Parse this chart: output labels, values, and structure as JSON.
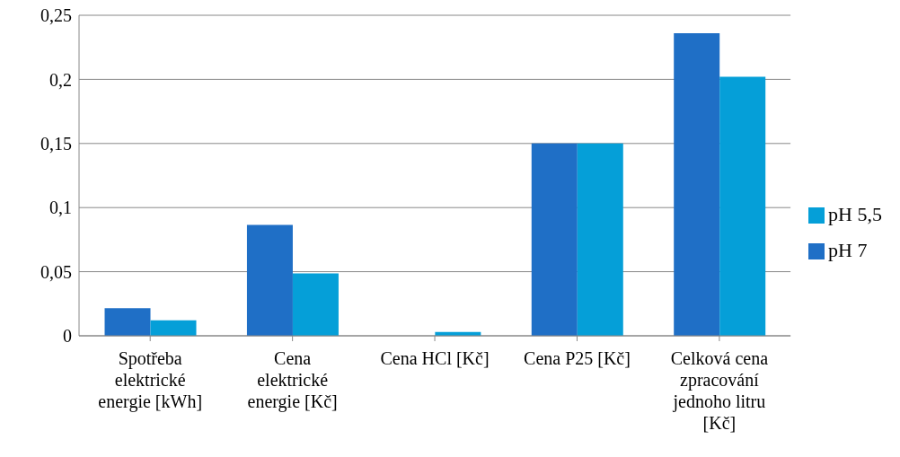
{
  "chart_data": {
    "type": "bar",
    "categories": [
      "Spotřeba elektrické energie [kWh]",
      "Cena elektrické energie [Kč]",
      "Cena HCl [Kč]",
      "Cena P25 [Kč]",
      "Celková cena zpracování jednoho litru [Kč]"
    ],
    "series": [
      {
        "name": "pH 7",
        "color": "#1f6fc6",
        "values": [
          0.0215,
          0.0865,
          0,
          0.15,
          0.236
        ]
      },
      {
        "name": "pH 5,5",
        "color": "#059fd8",
        "values": [
          0.012,
          0.0487,
          0.003,
          0.15,
          0.202
        ]
      }
    ],
    "ylim": [
      0,
      0.25
    ],
    "yticks": [
      {
        "value": 0,
        "label": "0"
      },
      {
        "value": 0.05,
        "label": "0,05"
      },
      {
        "value": 0.1,
        "label": "0,1"
      },
      {
        "value": 0.15,
        "label": "0,15"
      },
      {
        "value": 0.2,
        "label": "0,2"
      },
      {
        "value": 0.25,
        "label": "0,25"
      }
    ],
    "grid": "y",
    "legend": "right"
  }
}
